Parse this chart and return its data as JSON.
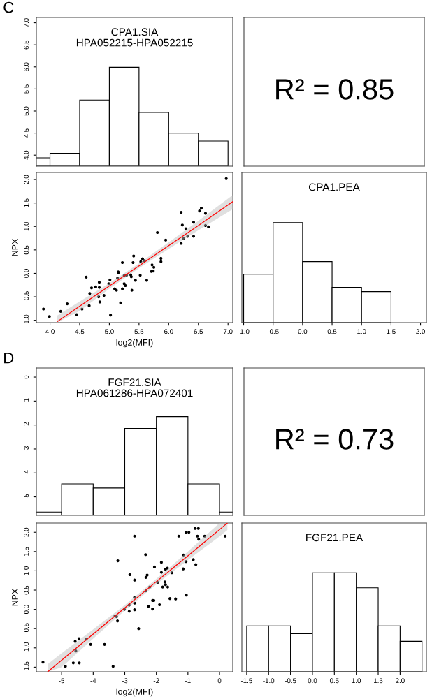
{
  "chart_data": [
    {
      "type": "histogram",
      "title": "CPA1.SIA\nHPA052215-HPA052215",
      "annotations": [
        "C"
      ],
      "bins": [
        3.5,
        4.0,
        4.5,
        5.0,
        5.5,
        6.0,
        6.5,
        7.0
      ],
      "base": [
        3.75,
        3.75,
        3.75,
        3.75,
        3.75,
        3.75,
        3.75
      ],
      "values": [
        0.19,
        0.29,
        1.5,
        2.24,
        1.22,
        0.75,
        0.57
      ],
      "color": "#ffffff",
      "xlim": [
        3.77,
        7.08
      ],
      "ylim": [
        3.75,
        7.12
      ],
      "yticks": [
        {
          "value": 4,
          "label": "4.0"
        },
        4.5,
        {
          "value": 5,
          "label": "5.0"
        },
        5.5,
        {
          "value": 6,
          "label": "6.0"
        },
        6.5,
        {
          "value": 7,
          "label": "7.0"
        }
      ],
      "tick_labels": "y"
    },
    {
      "type": "other",
      "annotations": [
        "R² = 0.85"
      ]
    },
    {
      "type": "scatter",
      "xlabel": "log2(MFI)",
      "ylabel": "NPX",
      "xlim": [
        3.77,
        7.08
      ],
      "ylim": [
        -1.05,
        2.15
      ],
      "xticks": [
        {
          "value": 4,
          "label": "4.0"
        },
        4.5,
        {
          "value": 5,
          "label": "5.0"
        },
        5.5,
        {
          "value": 6,
          "label": "6.0"
        },
        6.5,
        {
          "value": 7,
          "label": "7.0"
        }
      ],
      "yticks": [
        {
          "value": -1,
          "label": "-1.0"
        },
        -0.5,
        {
          "value": 0,
          "label": "0.0"
        },
        0.5,
        {
          "value": 1,
          "label": "1.0"
        },
        1.5,
        {
          "value": 2,
          "label": "2.0"
        }
      ],
      "series": [
        {
          "type": "scatter",
          "marker": "circle",
          "color": "#000000",
          "x": [
            3.89,
            3.99,
            4.18,
            4.29,
            4.45,
            4.54,
            4.61,
            4.66,
            4.67,
            4.7,
            4.77,
            4.82,
            4.83,
            4.83,
            4.84,
            4.91,
            4.99,
            5.01,
            5.02,
            5.09,
            5.12,
            5.14,
            5.15,
            5.15,
            5.19,
            5.22,
            5.22,
            5.25,
            5.25,
            5.27,
            5.29,
            5.36,
            5.37,
            5.38,
            5.4,
            5.41,
            5.44,
            5.52,
            5.53,
            5.56,
            5.59,
            5.63,
            5.71,
            5.72,
            5.74,
            5.75,
            5.81,
            5.87,
            5.87,
            5.95,
            6.21,
            6.21,
            6.23,
            6.25,
            6.29,
            6.32,
            6.42,
            6.42,
            6.52,
            6.55,
            6.62,
            6.62,
            6.67,
            6.97
          ],
          "values": [
            -0.76,
            -0.92,
            -0.81,
            -0.65,
            -0.88,
            -0.76,
            -0.08,
            -0.69,
            -0.43,
            -0.31,
            -0.29,
            -0.5,
            -0.19,
            -0.3,
            -0.61,
            -0.47,
            -0.22,
            -0.14,
            -0.89,
            -0.33,
            -0.36,
            -0.1,
            0.03,
            0.01,
            -0.63,
            0.23,
            -0.33,
            -0.05,
            -0.22,
            -0.26,
            -0.04,
            -0.03,
            -0.07,
            -0.36,
            0.23,
            0.37,
            -0.15,
            -0.04,
            0.25,
            0.31,
            0.27,
            -0.15,
            0.04,
            0.18,
            0.05,
            0.13,
            0.87,
            0.32,
            0.25,
            0.71,
            0.64,
            1.3,
            1.03,
            0.74,
            0.95,
            0.79,
            0.79,
            1.09,
            1.33,
            1.39,
            1.28,
            1.02,
            0.99,
            2.02
          ]
        },
        {
          "type": "line",
          "color": "#ff0000",
          "x": [
            4.12,
            4.5,
            5.0,
            5.5,
            6.0,
            6.5,
            7.08
          ],
          "values": [
            -1.03,
            -0.7,
            -0.27,
            0.16,
            0.59,
            1.02,
            1.53
          ],
          "lower": [
            -1.05,
            -0.8,
            -0.33,
            0.11,
            0.52,
            0.92,
            1.37
          ],
          "upper": [
            -0.9,
            -0.6,
            -0.21,
            0.21,
            0.66,
            1.12,
            1.67
          ]
        }
      ]
    },
    {
      "type": "histogram",
      "title": "CPA1.PEA",
      "bins": [
        -1.0,
        -0.5,
        0.0,
        0.5,
        1.0,
        1.5
      ],
      "base": [
        -1.05,
        -1.05,
        -1.05,
        -1.05,
        -1.05
      ],
      "values": [
        1.03,
        2.13,
        1.3,
        0.75,
        0.66
      ],
      "color": "#ffffff",
      "xlim": [
        -1.03,
        2.1
      ],
      "ylim": [
        -1.05,
        2.15
      ],
      "xticks": [
        {
          "value": -1,
          "label": "-1.0"
        },
        -0.5,
        {
          "value": 0,
          "label": "0.0"
        },
        0.5,
        {
          "value": 1,
          "label": "1.0"
        },
        1.5,
        {
          "value": 2,
          "label": "2.0"
        }
      ],
      "tick_labels": "x"
    },
    {
      "type": "histogram",
      "title": "FGF21.SIA\nHPA061286-HPA072401",
      "annotations": [
        "D"
      ],
      "bins": [
        -6,
        -5,
        -4,
        -3,
        -2,
        -1,
        0,
        1
      ],
      "base": [
        -5.77,
        -5.77,
        -5.77,
        -5.77,
        -5.77,
        -5.77,
        -5.77
      ],
      "values": [
        0.14,
        1.31,
        1.14,
        3.63,
        4.12,
        1.31,
        0.14
      ],
      "color": "#ffffff",
      "xlim": [
        -5.8,
        0.42
      ],
      "ylim": [
        -5.77,
        0.38
      ],
      "yticks": [
        0,
        -1,
        -2,
        -3,
        -4,
        -5
      ],
      "tick_labels": "y"
    },
    {
      "type": "other",
      "annotations": [
        "R² = 0.73"
      ]
    },
    {
      "type": "scatter",
      "xlabel": "log2(MFI)",
      "ylabel": "NPX",
      "xlim": [
        -5.8,
        0.42
      ],
      "ylim": [
        -1.62,
        2.24
      ],
      "xticks": [
        -5,
        -4,
        -3,
        -2,
        -1,
        0
      ],
      "yticks": [
        -1.5,
        {
          "value": -1,
          "label": "-1.0"
        },
        -0.5,
        {
          "value": 0,
          "label": "0.0"
        },
        0.5,
        {
          "value": 1,
          "label": "1.0"
        },
        1.5,
        {
          "value": 2,
          "label": "2.0"
        }
      ],
      "series": [
        {
          "type": "scatter",
          "marker": "circle",
          "color": "#000000",
          "x": [
            -5.59,
            -4.88,
            -4.63,
            -4.57,
            -4.55,
            -4.45,
            -4.44,
            -4.22,
            -4.08,
            -3.64,
            -3.37,
            -3.31,
            -3.26,
            -3.23,
            -3.22,
            -3.01,
            -2.86,
            -2.86,
            -2.84,
            -2.69,
            -2.69,
            -2.69,
            -2.69,
            -2.69,
            -2.56,
            -2.34,
            -2.33,
            -2.33,
            -2.29,
            -2.25,
            -2.21,
            -2.12,
            -2.12,
            -2.08,
            -2.06,
            -1.96,
            -1.9,
            -1.84,
            -1.84,
            -1.8,
            -1.73,
            -1.71,
            -1.71,
            -1.65,
            -1.64,
            -1.57,
            -1.51,
            -1.39,
            -1.29,
            -1.15,
            -1.14,
            -1.06,
            -1.06,
            -1.05,
            -0.97,
            -0.83,
            -0.77,
            -0.75,
            -0.7,
            -0.67,
            -0.66,
            -0.47,
            0.18
          ],
          "values": [
            -1.37,
            -1.48,
            -1.39,
            -0.83,
            -1.08,
            -0.76,
            -1.39,
            -0.77,
            -0.91,
            -0.91,
            -1.48,
            -0.17,
            -0.19,
            -0.3,
            1.26,
            0.0,
            0.11,
            -0.05,
            0.9,
            1.9,
            0.76,
            0.31,
            0.16,
            -0.01,
            -0.5,
            1.42,
            0.83,
            0.48,
            0.89,
            0.08,
            0.58,
            0.23,
            0.01,
            0.23,
            1.1,
            0.7,
            0.12,
            1.22,
            0.96,
            0.58,
            0.71,
            0.64,
            1.04,
            1.07,
            0.58,
            0.28,
            0.95,
            0.27,
            1.9,
            1.05,
            1.41,
            2.0,
            1.24,
            0.37,
            2.0,
            1.29,
            2.1,
            1.16,
            1.9,
            2.1,
            1.82,
            1.9,
            1.9
          ]
        },
        {
          "type": "line",
          "color": "#ff0000",
          "x": [
            -5.44,
            -5.0,
            -4.0,
            -3.0,
            -2.0,
            -1.0,
            0.0,
            0.25
          ],
          "values": [
            -1.62,
            -1.32,
            -0.64,
            0.04,
            0.72,
            1.39,
            2.07,
            2.24
          ],
          "lower": [
            -1.62,
            -1.5,
            -0.76,
            -0.03,
            0.65,
            1.28,
            1.89,
            2.06
          ],
          "upper": [
            -1.42,
            -1.14,
            -0.52,
            0.11,
            0.79,
            1.5,
            2.24,
            2.24
          ]
        }
      ]
    },
    {
      "type": "histogram",
      "title": "FGF21.PEA",
      "bins": [
        -1.5,
        -1.0,
        -0.5,
        0.0,
        0.5,
        1.0,
        1.5,
        2.0,
        2.5
      ],
      "base": [
        -1.62,
        -1.62,
        -1.62,
        -1.62,
        -1.62,
        -1.62,
        -1.62,
        -1.62
      ],
      "values": [
        1.19,
        1.19,
        0.99,
        2.57,
        2.57,
        2.18,
        1.19,
        0.79
      ],
      "color": "#ffffff",
      "xlim": [
        -1.61,
        2.6
      ],
      "ylim": [
        -1.62,
        2.24
      ],
      "xticks": [
        -1.5,
        {
          "value": -1,
          "label": "-1.0"
        },
        -0.5,
        {
          "value": 0,
          "label": "0.0"
        },
        0.5,
        {
          "value": 1,
          "label": "1.0"
        },
        1.5,
        {
          "value": 2,
          "label": "2.0"
        }
      ],
      "tick_labels": "x"
    }
  ]
}
